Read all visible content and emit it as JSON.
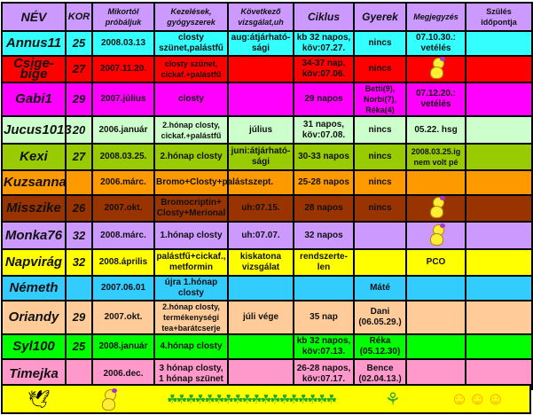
{
  "headers": {
    "nev": "NÉV",
    "kor": "KOR",
    "mikortol": "Mikortól próbáljuk",
    "kezelesek": "Kezelések, gyógyszerek",
    "kovetkezo": "Következő vizsgálat,uh",
    "ciklus": "Ciklus",
    "gyerek": "Gyerek",
    "megjegyzes": "Megjegyzés",
    "szules": "Szülés időpontja"
  },
  "rows": [
    {
      "nev": "Annus11",
      "kor": "25",
      "mikortol": "2008.03.13",
      "kezelesek": "closty szünet,palástfű",
      "kovetkezo": "aug:átjárható-sági",
      "ciklus": "kb 32 napos, köv:07.27.",
      "gyerek": "nincs",
      "megjegyzes": "07.10.30.: vetélés",
      "szules": "",
      "color": "#33ffff"
    },
    {
      "nev": "Csige-bige",
      "kor": "27",
      "mikortol": "2007.11.20.",
      "kezelesek": "closty szünet, cickaf.+palástfű",
      "kovetkezo": "",
      "ciklus": "34-37 nap, köv:07.06.",
      "gyerek": "nincs",
      "megjegyzes": "",
      "icon": "chick-icon",
      "szules": "",
      "color": "#ff0000"
    },
    {
      "nev": "Gabi1",
      "kor": "29",
      "mikortol": "2007.július",
      "kezelesek": "closty",
      "kovetkezo": "",
      "ciklus": "29 napos",
      "gyerek": "Betti(9), Norbi(7), Réka(4)",
      "megjegyzes": "07.12.20.: vetélés",
      "szules": "",
      "color": "#ff00ff"
    },
    {
      "nev": "Jucus1013",
      "kor": "20",
      "mikortol": "2006.január",
      "kezelesek": "2.hónap closty, cickaf.+palástfű",
      "kovetkezo": "július",
      "ciklus": "31 napos, köv:07.08.",
      "gyerek": "nincs",
      "megjegyzes": "05.22. hsg",
      "szules": "",
      "color": "#ccffcc"
    },
    {
      "nev": "Kexi",
      "kor": "27",
      "mikortol": "2008.03.25.",
      "kezelesek": "2.hónap closty",
      "kovetkezo": "juni:átjárható-sági",
      "ciklus": "30-33 napos",
      "gyerek": "nincs",
      "megjegyzes": "2008.03.25.ig nem volt pé",
      "szules": "",
      "color": "#99cc00"
    },
    {
      "nev": "Kuzsanna",
      "kor": "",
      "mikortol": "2006.márc.",
      "kezelesek": "Bromo+Closty+palást.",
      "kovetkezo": "szept.",
      "ciklus": "25-28 napos",
      "gyerek": "nincs",
      "megjegyzes": "",
      "szules": "",
      "color": "#ff9900"
    },
    {
      "nev": "Misszike",
      "kor": "26",
      "mikortol": "2007.okt.",
      "kezelesek": "Bromocriptin+ Closty+Merional",
      "kovetkezo": "uh:07.15.",
      "ciklus": "28 napos",
      "gyerek": "nincs",
      "megjegyzes": "",
      "icon": "chick-icon",
      "szules": "",
      "color": "#993300"
    },
    {
      "nev": "Monka76",
      "kor": "32",
      "mikortol": "2008.márc.",
      "kezelesek": "1.hónap closty",
      "kovetkezo": "uh:07.07.",
      "ciklus": "32 napos",
      "gyerek": "",
      "megjegyzes": "",
      "icon": "chick-icon",
      "szules": "",
      "color": "#cc99ff"
    },
    {
      "nev": "Napvirág",
      "kor": "32",
      "mikortol": "2008.április",
      "kezelesek": "palástfű+cickaf., metformin",
      "kovetkezo": "kiskatona vizsgálat",
      "ciklus": "rendszerte-len",
      "gyerek": "",
      "megjegyzes": "PCO",
      "szules": "",
      "color": "#ffff00"
    },
    {
      "nev": "Németh",
      "kor": "",
      "mikortol": "2007.06.01",
      "kezelesek": "újra 1.hónap closty",
      "kovetkezo": "",
      "ciklus": "",
      "gyerek": "Máté",
      "megjegyzes": "",
      "szules": "",
      "color": "#33ccff"
    },
    {
      "nev": "Oriandy",
      "kor": "29",
      "mikortol": "2007.okt.",
      "kezelesek": "2.hónap closty, termékenységi tea+barátcserje",
      "kovetkezo": "júli vége",
      "ciklus": "35 nap",
      "gyerek": "Dani (06.05.29.)",
      "megjegyzes": "",
      "szules": "",
      "color": "#ffcc99"
    },
    {
      "nev": "Syl100",
      "kor": "25",
      "mikortol": "2008.január",
      "kezelesek": "4.hónap closty",
      "kovetkezo": "",
      "ciklus": "kb 32 napos, köv:07.13.",
      "gyerek": "Réka (05.12.30)",
      "megjegyzes": "",
      "szules": "",
      "color": "#00ff00"
    },
    {
      "nev": "Timejka",
      "kor": "",
      "mikortol": "2006.dec.",
      "kezelesek": "3 hónap closty, 1 hónap szünet",
      "kovetkezo": "",
      "ciklus": "26-28 napos, köv:07.17.",
      "gyerek": "Bence (02.04.13.)",
      "megjegyzes": "",
      "szules": "",
      "color": "#ff99cc"
    }
  ],
  "footer": {
    "icons": [
      "stork-icon",
      "chick-icon",
      "clover-row-icon",
      "stroller-icon",
      "smiley-icon"
    ],
    "color": "#ffff00"
  }
}
